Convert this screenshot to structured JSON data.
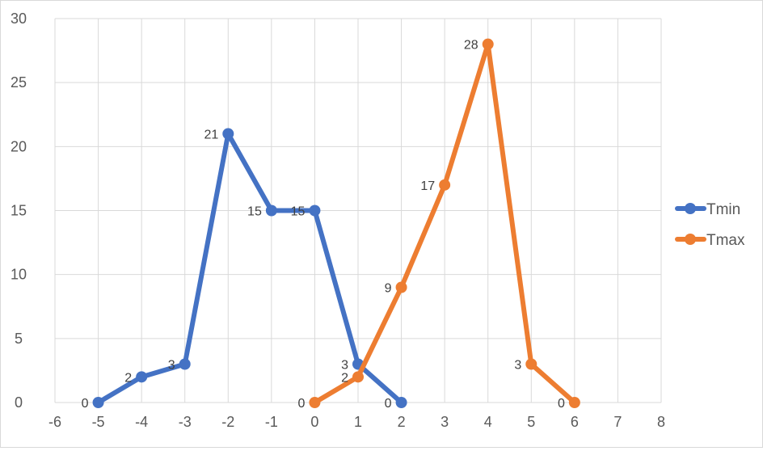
{
  "chart_data": {
    "type": "line",
    "title": "",
    "xlabel": "",
    "ylabel": "",
    "xlim": [
      -6,
      8
    ],
    "ylim": [
      0,
      30
    ],
    "x_ticks": [
      -6,
      -5,
      -4,
      -3,
      -2,
      -1,
      0,
      1,
      2,
      3,
      4,
      5,
      6,
      7,
      8
    ],
    "y_ticks": [
      0,
      5,
      10,
      15,
      20,
      25,
      30
    ],
    "grid": true,
    "legend_position": "right",
    "series": [
      {
        "name": "Tmin",
        "color": "#4472C4",
        "x": [
          -5,
          -4,
          -3,
          -2,
          -1,
          0,
          1,
          2
        ],
        "y": [
          0,
          2,
          3,
          21,
          15,
          15,
          3,
          0
        ]
      },
      {
        "name": "Tmax",
        "color": "#ED7D31",
        "x": [
          0,
          1,
          2,
          3,
          4,
          5,
          6
        ],
        "y": [
          0,
          2,
          9,
          17,
          28,
          3,
          0
        ]
      }
    ]
  }
}
